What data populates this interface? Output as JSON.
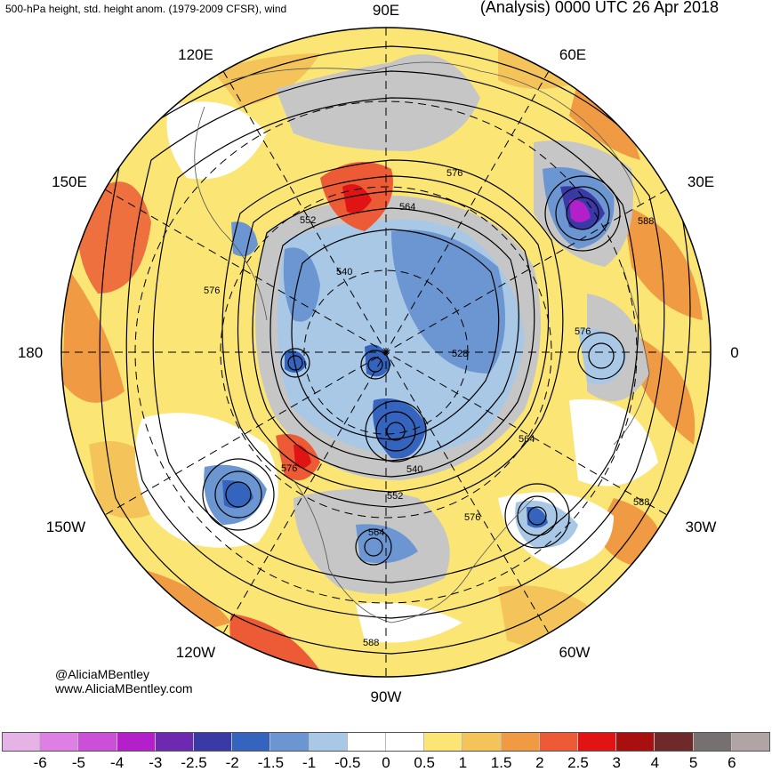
{
  "header": {
    "left_title": "500-hPa height, std. height anom. (1979-2009 CFSR), wind",
    "right_title": "(Analysis) 0000 UTC 26 Apr 2018"
  },
  "credits": {
    "line1": "@AliciaMBentley",
    "line2": "www.AliciaMBentley.com"
  },
  "longitude_labels": [
    "90E",
    "60E",
    "30E",
    "0",
    "30W",
    "60W",
    "90W",
    "120W",
    "150W",
    "180",
    "150E",
    "120E"
  ],
  "contour_labels": [
    "576",
    "552",
    "564",
    "588",
    "540",
    "576",
    "528",
    "576",
    "564",
    "540",
    "576",
    "552",
    "576",
    "564",
    "588",
    "588"
  ],
  "colorbar": {
    "ticks": [
      "-6",
      "-5",
      "-4",
      "-3",
      "-2.5",
      "-2",
      "-1.5",
      "-1",
      "-0.5",
      "0",
      "0.5",
      "1",
      "1.5",
      "2",
      "2.5",
      "3",
      "4",
      "5",
      "6"
    ],
    "colors": [
      "#e6b3e6",
      "#dd7fe3",
      "#cc4fd8",
      "#b31fc9",
      "#6d2ab0",
      "#3a3aa6",
      "#3564be",
      "#6b96d1",
      "#a8c8e6",
      "#ffffff",
      "#ffffff",
      "#fbe675",
      "#f4c45a",
      "#f09a44",
      "#ec5a36",
      "#e01414",
      "#a80f0f",
      "#6e2a2a",
      "#777070",
      "#b0a4a4"
    ]
  },
  "map": {
    "projection": "north polar stereographic",
    "ocean_color": "#ffffff",
    "land_outline_color": "#555555",
    "contour_color": "#000000",
    "boundary_color": "#000000"
  }
}
